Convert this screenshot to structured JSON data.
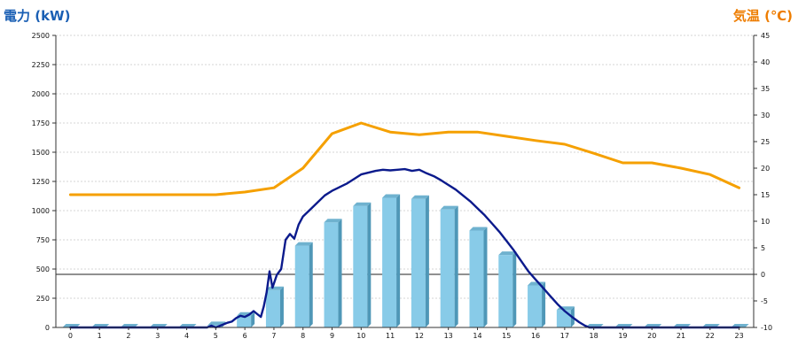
{
  "chart_data": {
    "type": "bar",
    "title": "",
    "y_left_label": "電力 (kW)",
    "y_right_label": "気温 (℃)",
    "categories": [
      "0",
      "1",
      "2",
      "3",
      "4",
      "5",
      "6",
      "7",
      "8",
      "9",
      "10",
      "11",
      "12",
      "13",
      "14",
      "15",
      "16",
      "17",
      "18",
      "19",
      "20",
      "21",
      "22",
      "23"
    ],
    "ylim_left": [
      0,
      2500
    ],
    "yticks_left": [
      "0",
      "250",
      "500",
      "750",
      "1000",
      "1250",
      "1500",
      "1750",
      "2000",
      "2250",
      "2500"
    ],
    "ylim_right": [
      -10,
      45
    ],
    "yticks_right": [
      "-10",
      "-5",
      "0",
      "5",
      "10",
      "15",
      "20",
      "25",
      "30",
      "35",
      "40",
      "45"
    ],
    "grid": true,
    "series": [
      {
        "kind": "bar",
        "axis": "left",
        "values": [
          0,
          0,
          0,
          0,
          0,
          20,
          100,
          320,
          700,
          900,
          1040,
          1110,
          1100,
          1010,
          830,
          620,
          360,
          150,
          0,
          0,
          0,
          0,
          0,
          0
        ]
      },
      {
        "kind": "line",
        "axis": "right",
        "values": [
          15,
          15,
          15,
          15,
          15,
          15,
          15.5,
          16.3,
          20,
          26.5,
          28.5,
          26.8,
          26.3,
          26.8,
          26.8,
          26,
          25.2,
          24.5,
          22.8,
          21,
          21,
          20,
          18.8,
          16.3
        ]
      },
      {
        "kind": "line",
        "axis": "left",
        "x": [
          0,
          1,
          2,
          3,
          4,
          4.5,
          4.7,
          4.85,
          5,
          5.2,
          5.4,
          5.55,
          5.7,
          5.85,
          6,
          6.15,
          6.3,
          6.45,
          6.55,
          6.65,
          6.75,
          6.85,
          6.95,
          7.1,
          7.25,
          7.4,
          7.55,
          7.7,
          7.85,
          8,
          8.25,
          8.5,
          8.75,
          9,
          9.25,
          9.5,
          9.75,
          10,
          10.25,
          10.5,
          10.75,
          11,
          11.25,
          11.5,
          11.75,
          12,
          12.25,
          12.5,
          12.75,
          13,
          13.25,
          13.5,
          13.75,
          14,
          14.25,
          14.5,
          14.75,
          15,
          15.25,
          15.5,
          15.75,
          16,
          16.25,
          16.5,
          16.75,
          17,
          17.25,
          17.5,
          17.7,
          17.85,
          18,
          19,
          20,
          21,
          22,
          23
        ],
        "values": [
          0,
          0,
          0,
          0,
          0,
          0,
          0,
          15,
          -10,
          20,
          40,
          50,
          80,
          100,
          90,
          110,
          140,
          110,
          90,
          180,
          300,
          480,
          340,
          450,
          500,
          750,
          800,
          760,
          880,
          950,
          1010,
          1070,
          1130,
          1170,
          1200,
          1230,
          1270,
          1310,
          1325,
          1340,
          1350,
          1345,
          1350,
          1355,
          1340,
          1350,
          1320,
          1295,
          1260,
          1220,
          1180,
          1130,
          1080,
          1020,
          960,
          890,
          820,
          740,
          660,
          570,
          480,
          410,
          340,
          270,
          200,
          140,
          90,
          45,
          15,
          0,
          0,
          0,
          0,
          0,
          0,
          0
        ]
      }
    ]
  },
  "colors": {
    "bar_front": "#88cbe8",
    "bar_side": "#4f97b7",
    "bar_top": "#6fb2cf",
    "power_line": "#0b1a8c",
    "temp_line": "#f5a000",
    "left_title": "#1a5fb4",
    "right_title": "#ee7d00",
    "grid": "#c8c8c8"
  }
}
